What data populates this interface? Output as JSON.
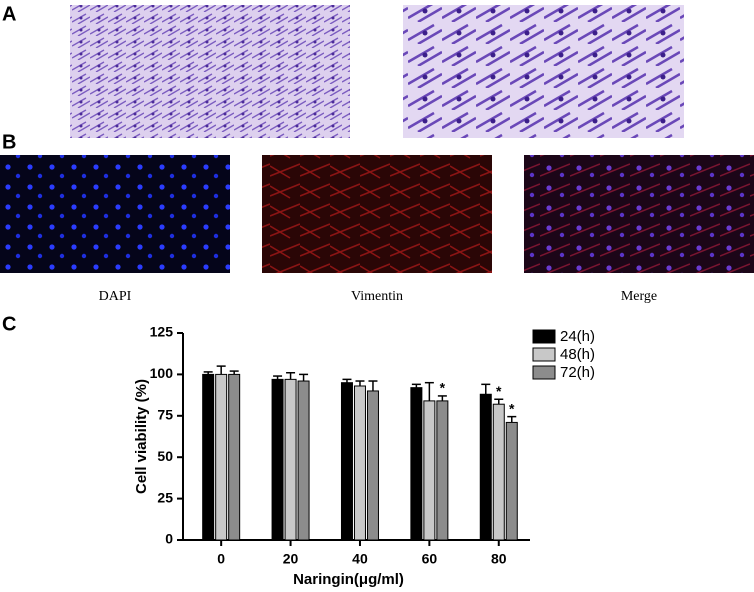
{
  "panels": {
    "a": "A",
    "b": "B",
    "c": "C"
  },
  "captions": [
    "DAPI",
    "Vimentin",
    "Merge"
  ],
  "chart_data": {
    "type": "bar",
    "categories": [
      "0",
      "20",
      "40",
      "60",
      "80"
    ],
    "x_label": "Naringin(μg/ml)",
    "y_label": "Cell viability (%)",
    "ylim": [
      0,
      125
    ],
    "yticks": [
      0,
      25,
      50,
      75,
      100,
      125
    ],
    "series": [
      {
        "name": "24(h)",
        "color": "#000000",
        "values": [
          100,
          97,
          95,
          92,
          88
        ],
        "errors": [
          1.5,
          2,
          2,
          2,
          6
        ],
        "marks": [
          null,
          null,
          null,
          null,
          null
        ]
      },
      {
        "name": "48(h)",
        "color": "#c8c8c8",
        "values": [
          100,
          97,
          93,
          84,
          82
        ],
        "errors": [
          5,
          4,
          3,
          11,
          3
        ],
        "marks": [
          null,
          null,
          null,
          null,
          "*"
        ]
      },
      {
        "name": "72(h)",
        "color": "#8c8c8c",
        "values": [
          100,
          96,
          90,
          84,
          71
        ],
        "errors": [
          2,
          4,
          6,
          3,
          3.5
        ],
        "marks": [
          null,
          null,
          null,
          "*",
          "*"
        ]
      }
    ]
  }
}
